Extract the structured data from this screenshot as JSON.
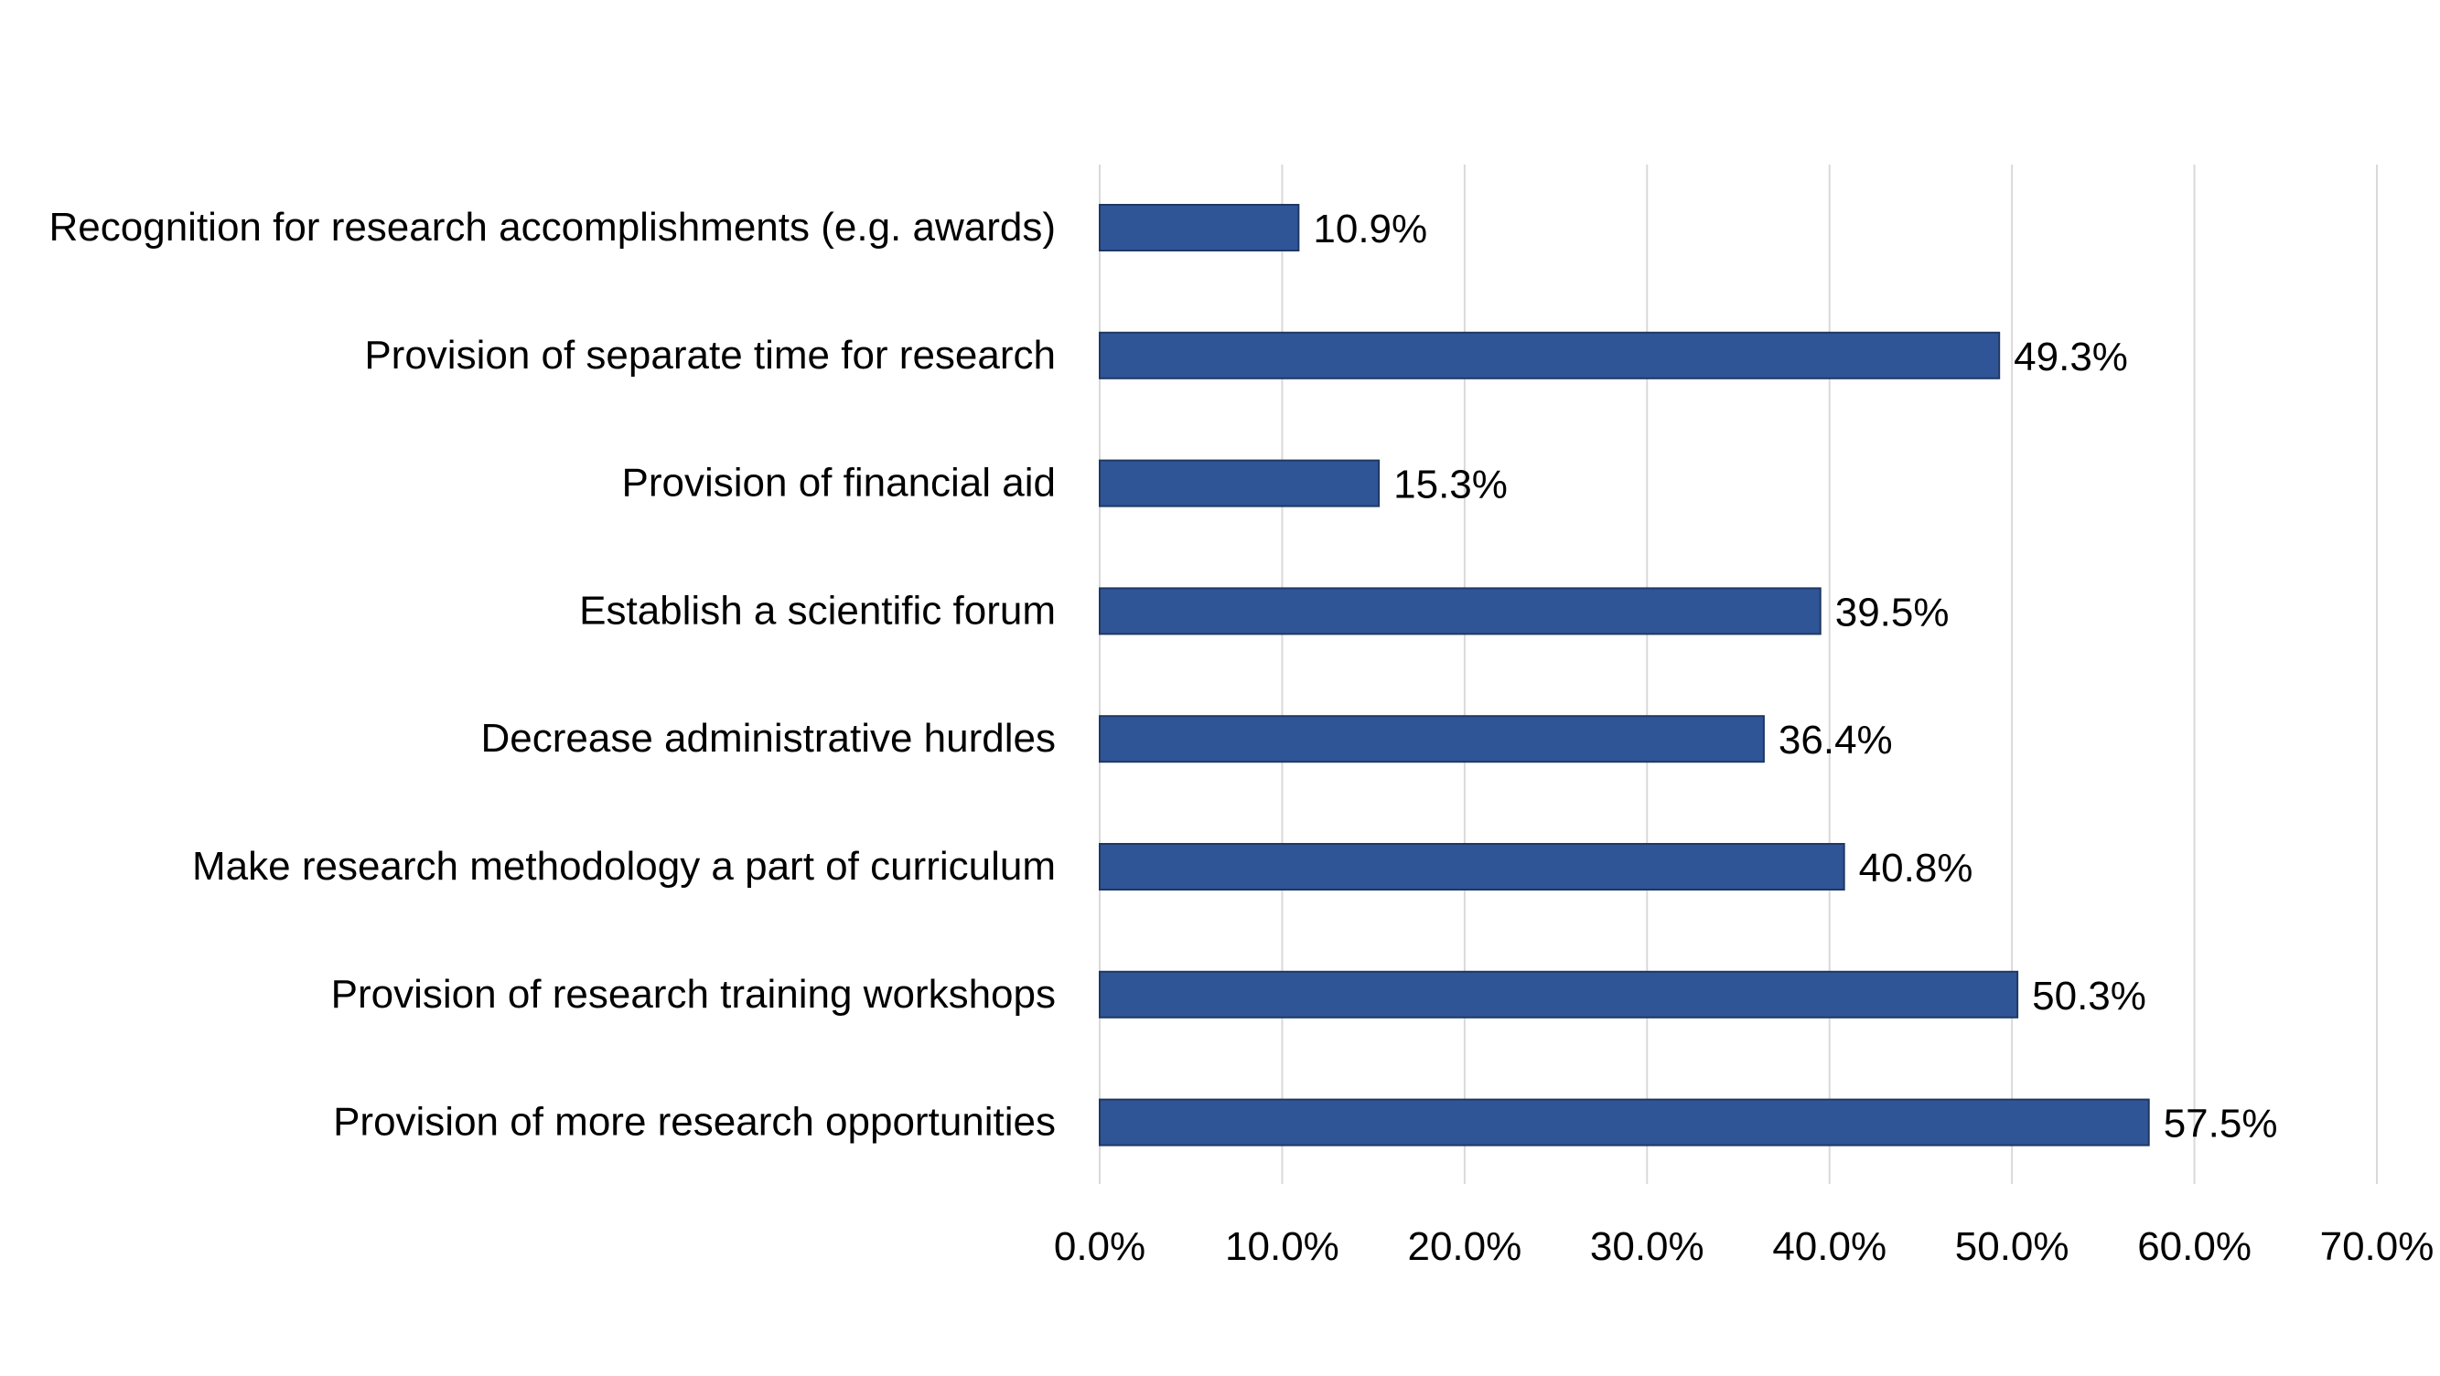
{
  "chart_data": {
    "type": "bar",
    "orientation": "horizontal",
    "title": "",
    "xlabel": "",
    "ylabel": "",
    "categories": [
      "Recognition for research accomplishments (e.g. awards)",
      "Provision of separate time for research",
      "Provision of financial aid",
      "Establish a scientific forum",
      "Decrease administrative hurdles",
      "Make research methodology a part of curriculum",
      "Provision of research training workshops",
      "Provision of more research opportunities"
    ],
    "values": [
      10.9,
      49.3,
      15.3,
      39.5,
      36.4,
      40.8,
      50.3,
      57.5
    ],
    "value_labels": [
      "10.9%",
      "49.3%",
      "15.3%",
      "39.5%",
      "36.4%",
      "40.8%",
      "50.3%",
      "57.5%"
    ],
    "xlim": [
      0,
      70
    ],
    "x_ticks": [
      0,
      10,
      20,
      30,
      40,
      50,
      60,
      70
    ],
    "x_tick_labels": [
      "0.0%",
      "10.0%",
      "20.0%",
      "30.0%",
      "40.0%",
      "50.0%",
      "60.0%",
      "70.0%"
    ],
    "grid": "vertical",
    "legend": "none",
    "bar_color": "#2f5597",
    "bar_edge_color": "#1f3864"
  }
}
